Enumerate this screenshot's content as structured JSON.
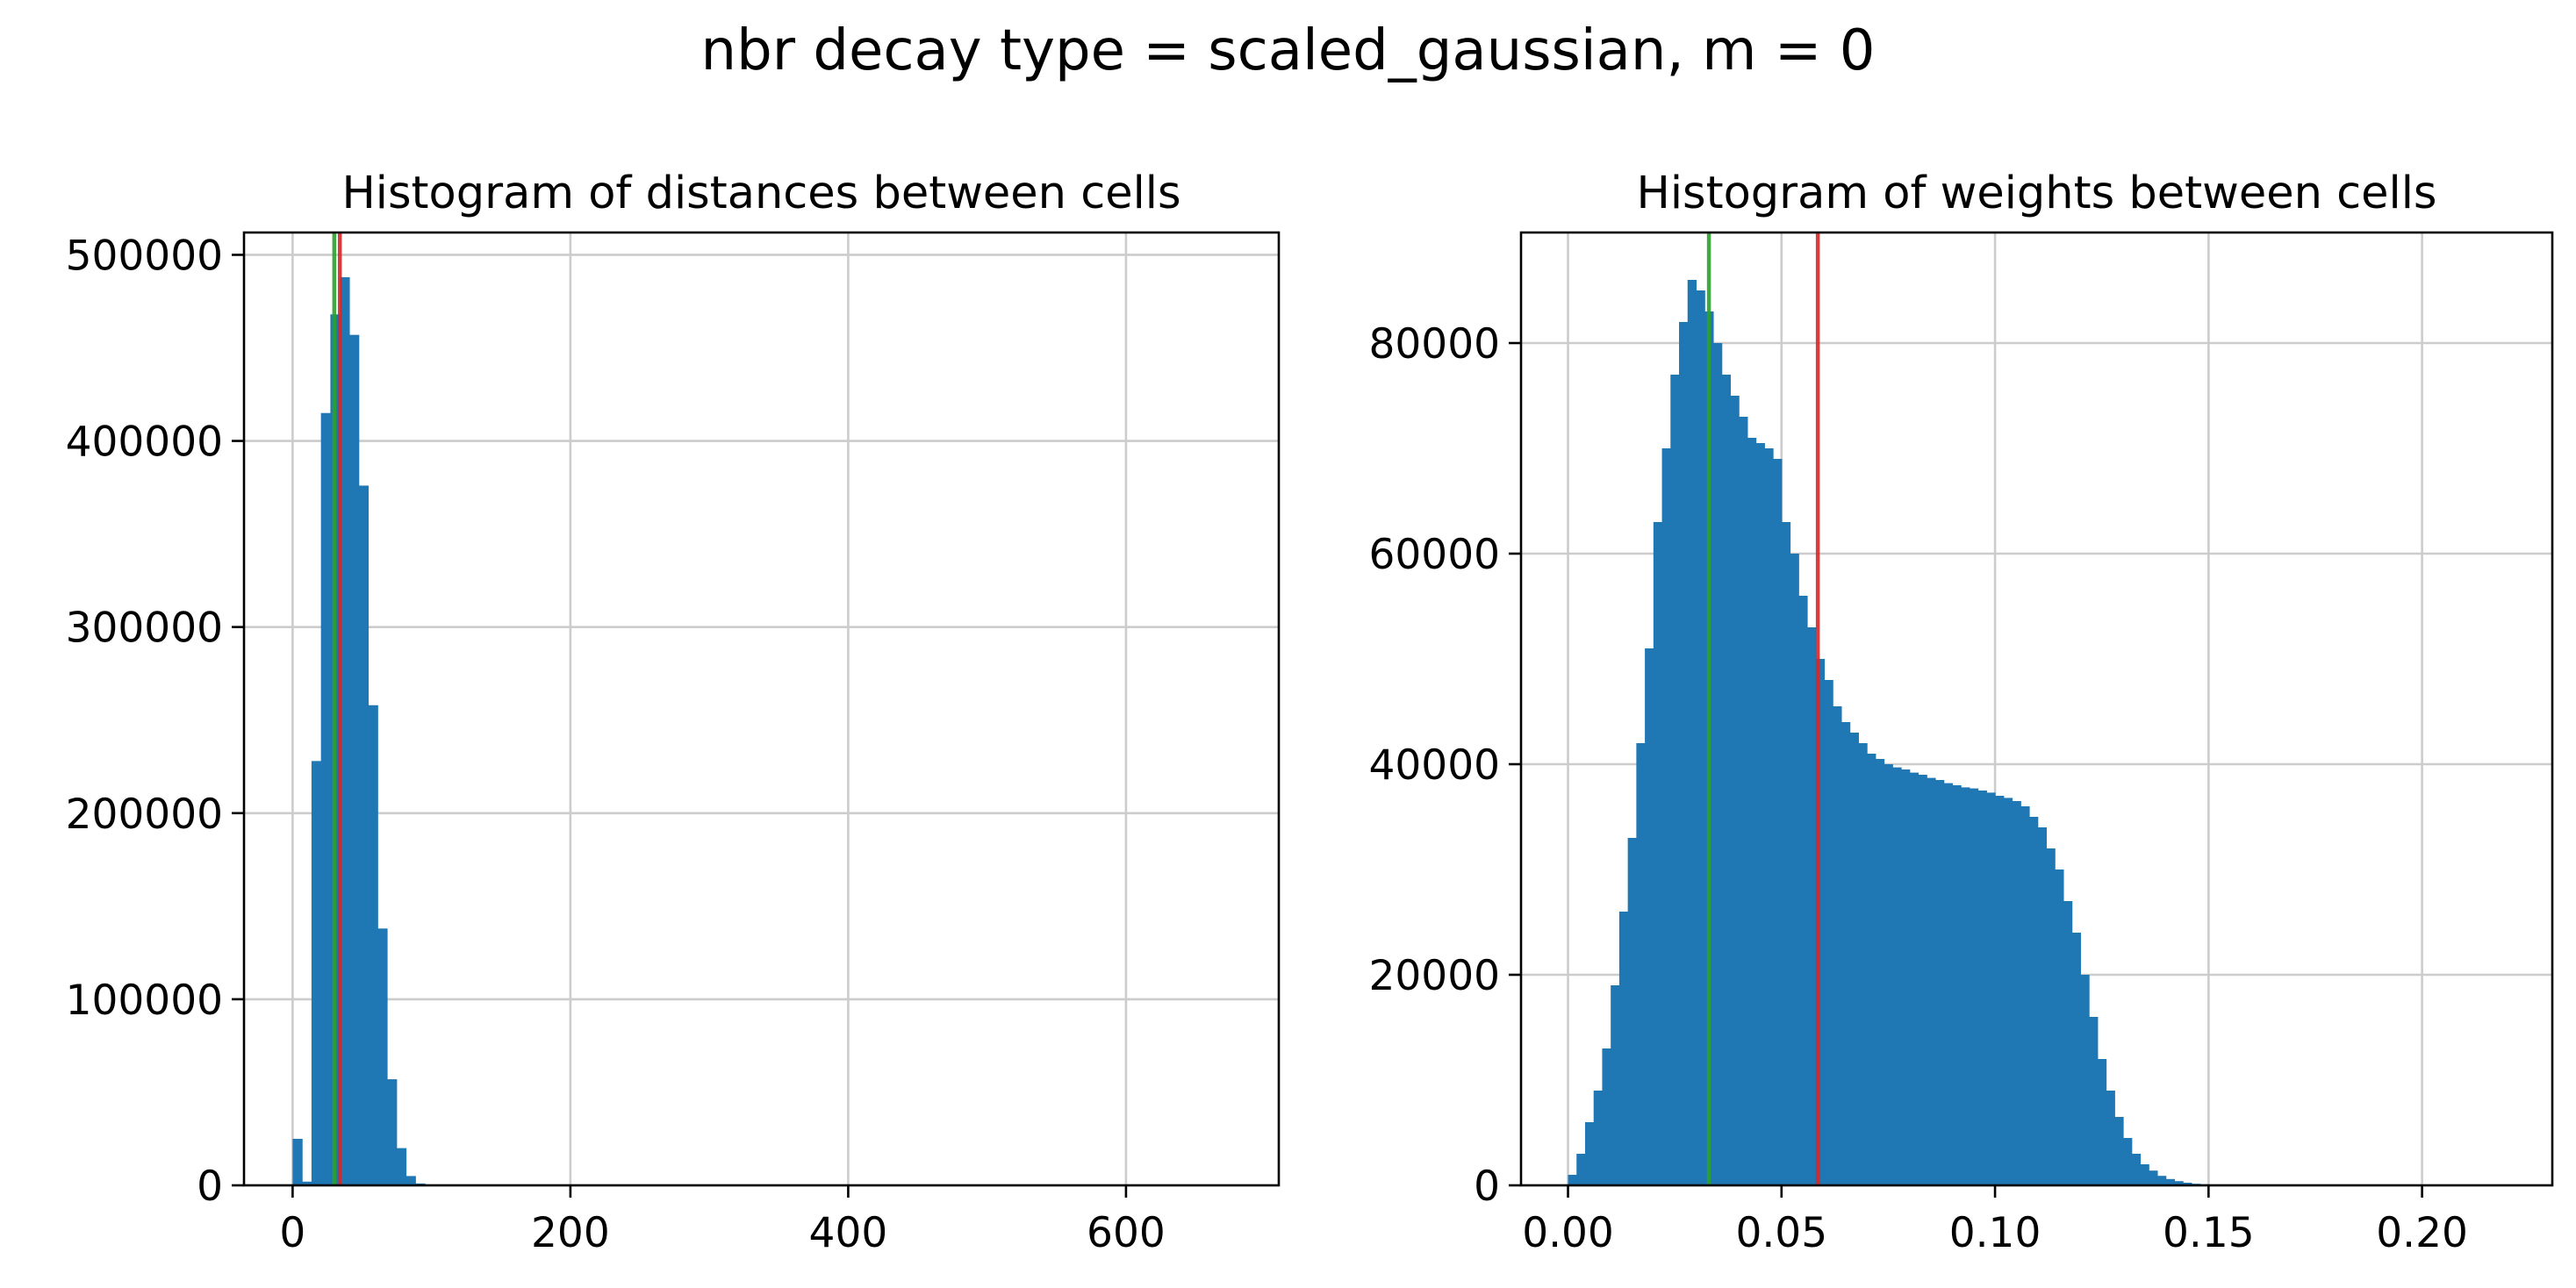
{
  "suptitle": "nbr decay type = scaled_gaussian, m = 0",
  "colors": {
    "bar": "#1f77b4",
    "median_line": "#2ca02c",
    "mean_line": "#d62728",
    "grid": "#cccccc"
  },
  "chart_data": [
    {
      "type": "bar",
      "title": "Histogram of distances between cells",
      "xlabel": "",
      "ylabel": "",
      "xlim": [
        -35,
        710
      ],
      "ylim": [
        0,
        512000
      ],
      "xticks": [
        0,
        200,
        400,
        600
      ],
      "xtick_labels": [
        "0",
        "200",
        "400",
        "600"
      ],
      "yticks": [
        0,
        100000,
        200000,
        300000,
        400000,
        500000
      ],
      "ytick_labels": [
        "0",
        "100000",
        "200000",
        "300000",
        "400000",
        "500000"
      ],
      "grid": true,
      "bin_width": 6.8,
      "bins_start": 0,
      "values": [
        25000,
        2000,
        228000,
        415000,
        468000,
        488000,
        457000,
        376000,
        258000,
        138000,
        57000,
        20000,
        5000,
        1000
      ],
      "vlines": [
        {
          "name": "green",
          "x": 30
        },
        {
          "name": "red",
          "x": 34
        }
      ]
    },
    {
      "type": "bar",
      "title": "Histogram of weights between cells",
      "xlabel": "",
      "ylabel": "",
      "xlim": [
        -0.011,
        0.2305
      ],
      "ylim": [
        0,
        90500
      ],
      "xticks": [
        0.0,
        0.05,
        0.1,
        0.15,
        0.2
      ],
      "xtick_labels": [
        "0.00",
        "0.05",
        "0.10",
        "0.15",
        "0.20"
      ],
      "yticks": [
        0,
        20000,
        40000,
        60000,
        80000
      ],
      "ytick_labels": [
        "0",
        "20000",
        "40000",
        "60000",
        "80000"
      ],
      "grid": true,
      "bin_width": 0.002,
      "bins_start": 0.0,
      "values": [
        1000,
        3000,
        6000,
        9000,
        13000,
        19000,
        26000,
        33000,
        42000,
        51000,
        63000,
        70000,
        77000,
        82000,
        86000,
        85000,
        83000,
        80000,
        77000,
        75000,
        73000,
        71000,
        70500,
        70000,
        69000,
        63000,
        60000,
        56000,
        53000,
        50000,
        48000,
        45500,
        44000,
        43000,
        42000,
        41000,
        40500,
        40000,
        39700,
        39500,
        39200,
        39000,
        38700,
        38500,
        38200,
        38000,
        37800,
        37700,
        37500,
        37300,
        37000,
        36800,
        36500,
        36000,
        35000,
        34000,
        32000,
        30000,
        27000,
        24000,
        20000,
        16000,
        12000,
        9000,
        6500,
        4500,
        3000,
        2000,
        1400,
        900,
        600,
        400,
        250,
        150,
        100,
        60,
        40,
        25
      ],
      "vlines": [
        {
          "name": "green",
          "x": 0.033
        },
        {
          "name": "red",
          "x": 0.0585
        }
      ]
    }
  ]
}
